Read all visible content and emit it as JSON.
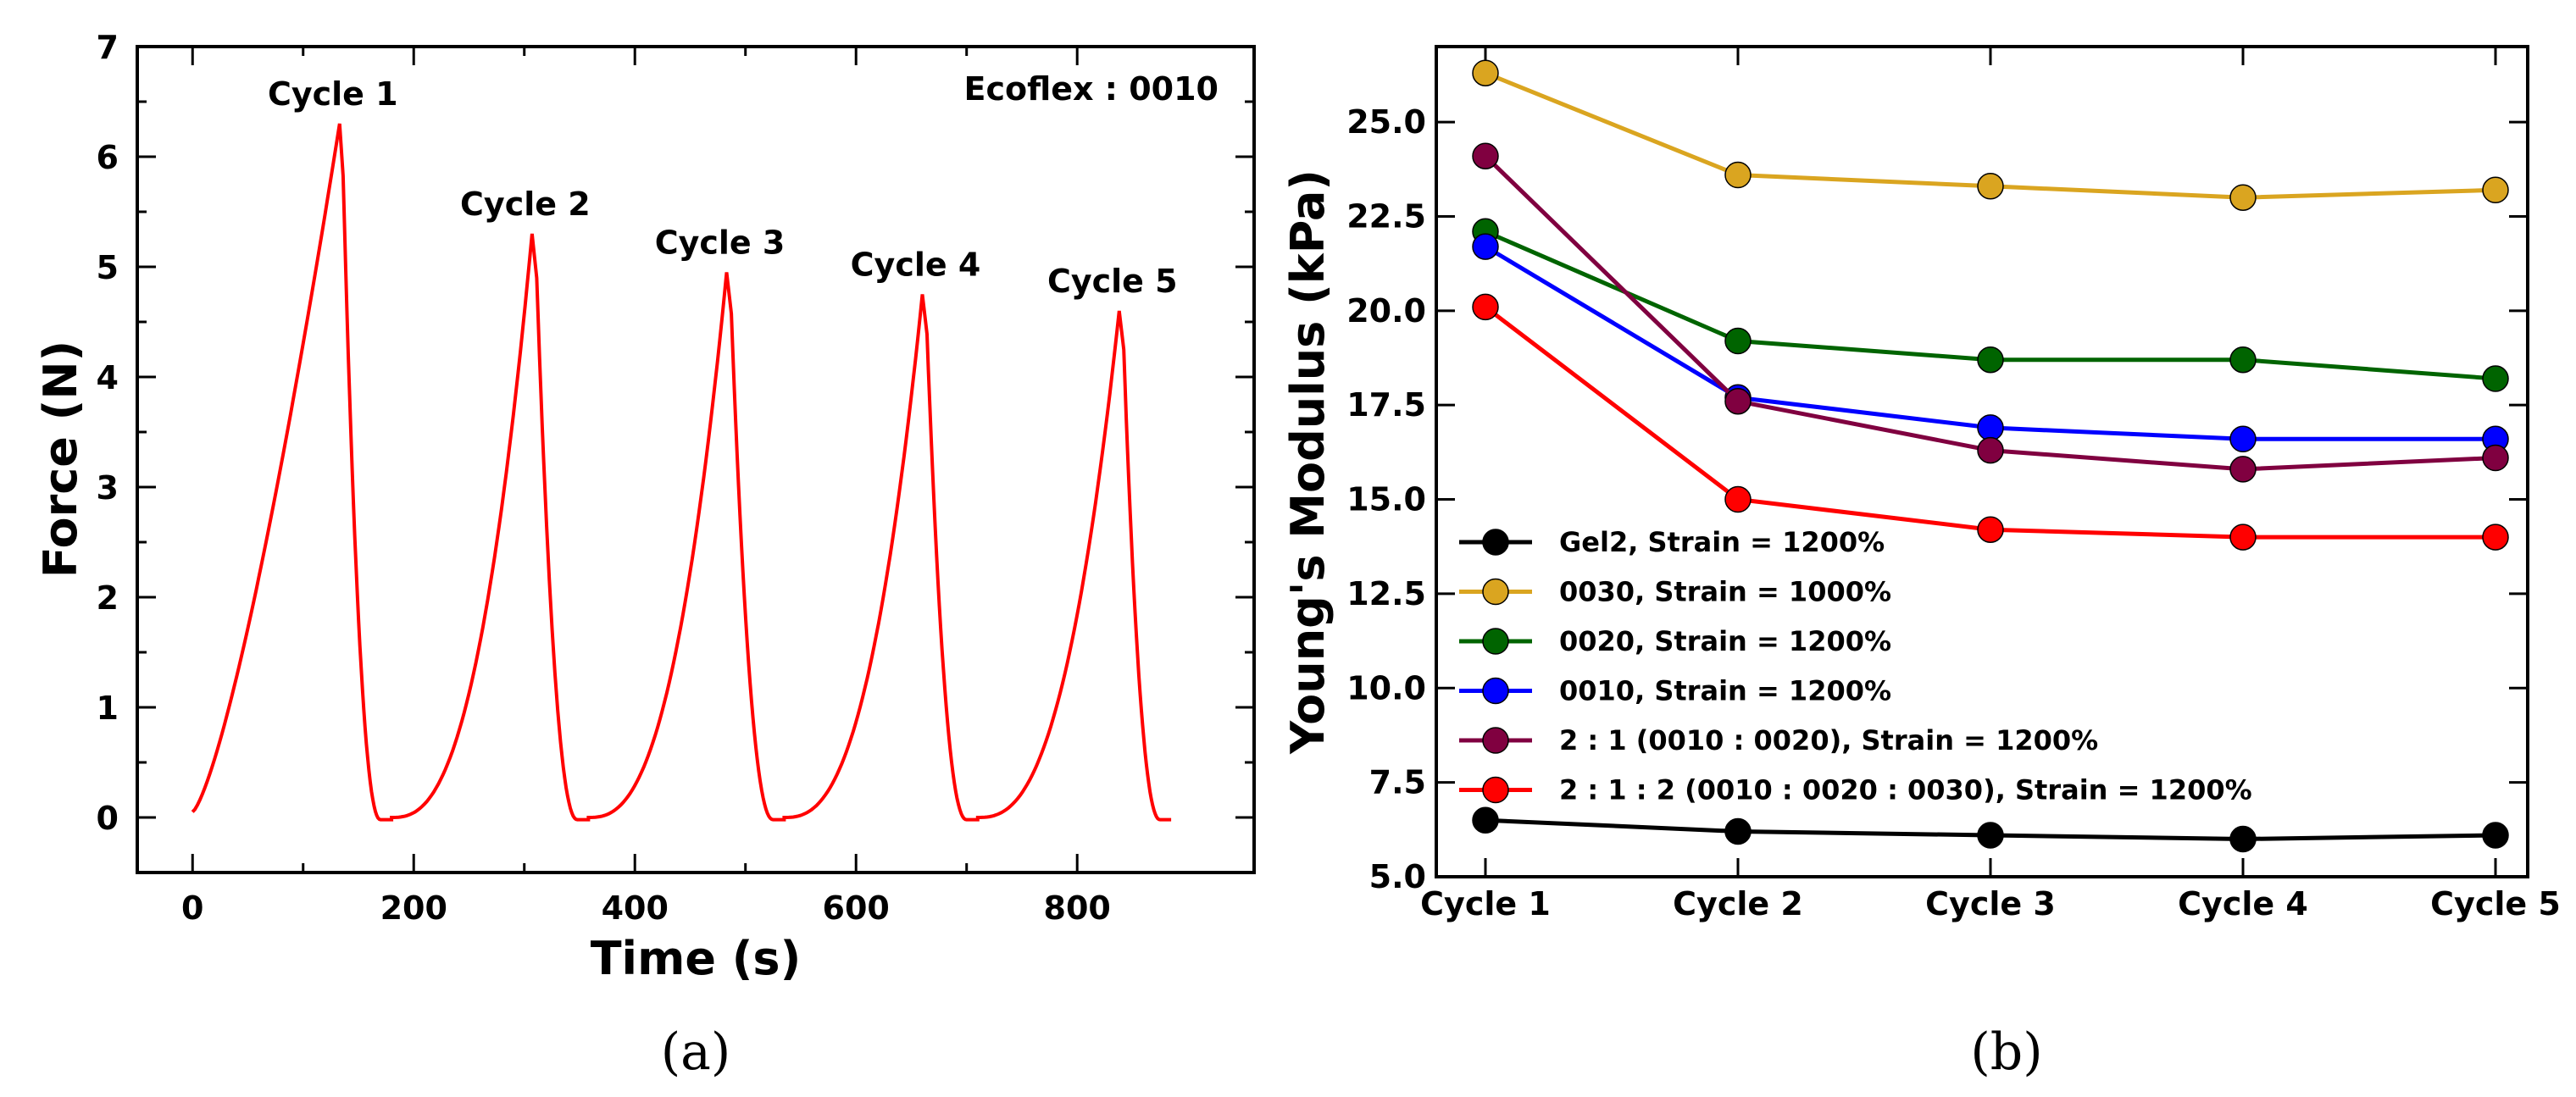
{
  "chart_data": [
    {
      "type": "line",
      "panel_label": "(a)",
      "title": "",
      "annotation": "Ecoflex : 0010",
      "xlabel": "Time (s)",
      "ylabel": "Force (N)",
      "xlim": [
        -50,
        960
      ],
      "ylim": [
        -0.5,
        7
      ],
      "xticks": [
        0,
        200,
        400,
        600,
        800
      ],
      "yticks": [
        0,
        1,
        2,
        3,
        4,
        5,
        6,
        7
      ],
      "color": "#ff0000",
      "cycles": [
        {
          "label": "Cycle 1",
          "start": 0,
          "start_force": 0.05,
          "peak_time": 133,
          "peak_force": 6.3,
          "drop_time": 135,
          "end_time": 170,
          "rest_end": 180
        },
        {
          "label": "Cycle 2",
          "start": 180,
          "start_force": 0.0,
          "peak_time": 307,
          "peak_force": 5.3,
          "drop_time": 310,
          "end_time": 348,
          "rest_end": 358
        },
        {
          "label": "Cycle 3",
          "start": 358,
          "start_force": 0.0,
          "peak_time": 483,
          "peak_force": 4.95,
          "drop_time": 486,
          "end_time": 525,
          "rest_end": 535
        },
        {
          "label": "Cycle 4",
          "start": 535,
          "start_force": 0.0,
          "peak_time": 660,
          "peak_force": 4.75,
          "drop_time": 663,
          "end_time": 700,
          "rest_end": 710
        },
        {
          "label": "Cycle 5",
          "start": 710,
          "start_force": 0.0,
          "peak_time": 838,
          "peak_force": 4.6,
          "drop_time": 841,
          "end_time": 875,
          "rest_end": 885
        }
      ]
    },
    {
      "type": "line",
      "panel_label": "(b)",
      "title": "",
      "xlabel": "",
      "ylabel": "Young's Modulus (kPa)",
      "categories": [
        "Cycle 1",
        "Cycle 2",
        "Cycle 3",
        "Cycle 4",
        "Cycle 5"
      ],
      "ylim": [
        5.0,
        27.0
      ],
      "yticks": [
        5.0,
        7.5,
        10.0,
        12.5,
        15.0,
        17.5,
        20.0,
        22.5,
        25.0
      ],
      "legend_position": "lower-left",
      "series": [
        {
          "name": "Gel2, Strain = 1200%",
          "color": "#000000",
          "values": [
            6.5,
            6.2,
            6.1,
            6.0,
            6.1
          ]
        },
        {
          "name": "0030, Strain = 1000%",
          "color": "#daa520",
          "values": [
            26.3,
            23.6,
            23.3,
            23.0,
            23.2
          ]
        },
        {
          "name": "0020, Strain = 1200%",
          "color": "#006400",
          "values": [
            22.1,
            19.2,
            18.7,
            18.7,
            18.2
          ]
        },
        {
          "name": "0010, Strain = 1200%",
          "color": "#0000ff",
          "values": [
            21.7,
            17.7,
            16.9,
            16.6,
            16.6
          ]
        },
        {
          "name": "2 : 1 (0010 : 0020), Strain = 1200%",
          "color": "#800040",
          "values": [
            24.1,
            17.6,
            16.3,
            15.8,
            16.1
          ]
        },
        {
          "name": "2 : 1 : 2 (0010 : 0020 : 0030), Strain = 1200%",
          "color": "#ff0000",
          "values": [
            20.1,
            15.0,
            14.2,
            14.0,
            14.0
          ]
        }
      ]
    }
  ]
}
